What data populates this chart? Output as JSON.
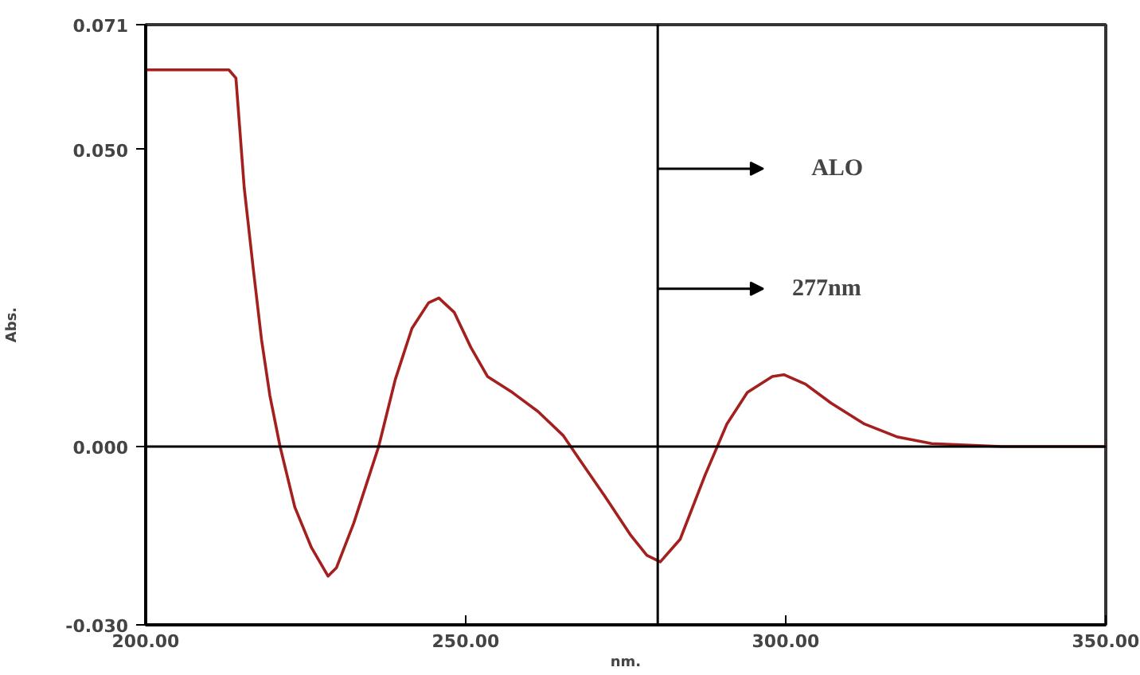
{
  "chart_data": {
    "type": "line",
    "xlabel": "nm.",
    "ylabel": "Abs.",
    "x": [
      200,
      213,
      214.1,
      215.4,
      216.8,
      218.1,
      219.4,
      221,
      223.3,
      225.9,
      228.5,
      229.8,
      232.5,
      235.1,
      236.4,
      239,
      241.6,
      244.2,
      245.8,
      248.2,
      250.8,
      253.4,
      257.3,
      261.3,
      265.2,
      267.8,
      271.7,
      275.7,
      278.3,
      280.4,
      283.5,
      287.4,
      290.8,
      294,
      297.9,
      299.7,
      303.1,
      307.1,
      312.3,
      317.5,
      322.8,
      333.8,
      350
    ],
    "series": [
      {
        "color": "#a3201e",
        "values": [
          0.0634,
          0.0634,
          0.062,
          0.0435,
          0.03,
          0.018,
          0.0086,
          0,
          -0.0102,
          -0.017,
          -0.0218,
          -0.0204,
          -0.0129,
          -0.0043,
          0,
          0.0113,
          0.0199,
          0.0242,
          0.025,
          0.0226,
          0.0167,
          0.0118,
          0.0091,
          0.0059,
          0.0019,
          -0.0022,
          -0.0083,
          -0.0148,
          -0.0183,
          -0.0194,
          -0.0156,
          -0.0048,
          0.0038,
          0.0091,
          0.0118,
          0.0121,
          0.0105,
          0.0073,
          0.0038,
          0.0016,
          0.0005,
          0,
          0
        ]
      }
    ],
    "xlim": [
      200,
      350
    ],
    "ylim": [
      -0.03,
      0.071
    ],
    "xticks": [
      {
        "value": 200,
        "label": "200.00"
      },
      {
        "value": 250,
        "label": "250.00"
      },
      {
        "value": 300,
        "label": "300.00"
      },
      {
        "value": 350,
        "label": "350.00"
      }
    ],
    "yticks": [
      {
        "value": -0.03,
        "label": "-0.030"
      },
      {
        "value": 0,
        "label": "0.000"
      },
      {
        "value": 0.05,
        "label": "0.050"
      },
      {
        "value": 0.071,
        "label": "0.071"
      }
    ],
    "ref_lines": [
      {
        "axis": "y",
        "value": 0,
        "color": "#000000"
      },
      {
        "axis": "x",
        "value": 280,
        "color": "#000000"
      }
    ],
    "annotations": [
      "ALO",
      "277nm"
    ],
    "grid": false,
    "marker": "none",
    "line_style": "solid"
  }
}
